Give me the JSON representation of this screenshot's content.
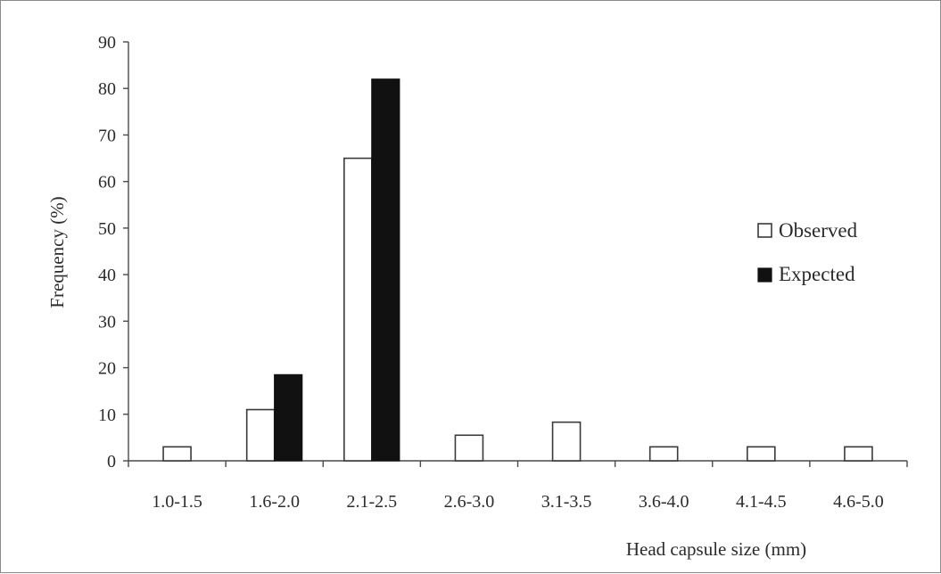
{
  "chart_data": {
    "type": "bar",
    "categories": [
      "1.0-1.5",
      "1.6-2.0",
      "2.1-2.5",
      "2.6-3.0",
      "3.1-3.5",
      "3.6-4.0",
      "4.1-4.5",
      "4.6-5.0"
    ],
    "series": [
      {
        "name": "Observed",
        "values": [
          3,
          11,
          65,
          5.5,
          8.3,
          3,
          3,
          3
        ],
        "color": "#ffffff"
      },
      {
        "name": "Expected",
        "values": [
          null,
          18.5,
          82,
          null,
          null,
          null,
          null,
          null
        ],
        "color": "#111111"
      }
    ],
    "xlabel": "Head capsule size (mm)",
    "ylabel": "Frequency (%)",
    "ylim": [
      0,
      90
    ],
    "yticks": [
      0,
      10,
      20,
      30,
      40,
      50,
      60,
      70,
      80,
      90
    ],
    "grid": false,
    "legend_position": "right"
  }
}
